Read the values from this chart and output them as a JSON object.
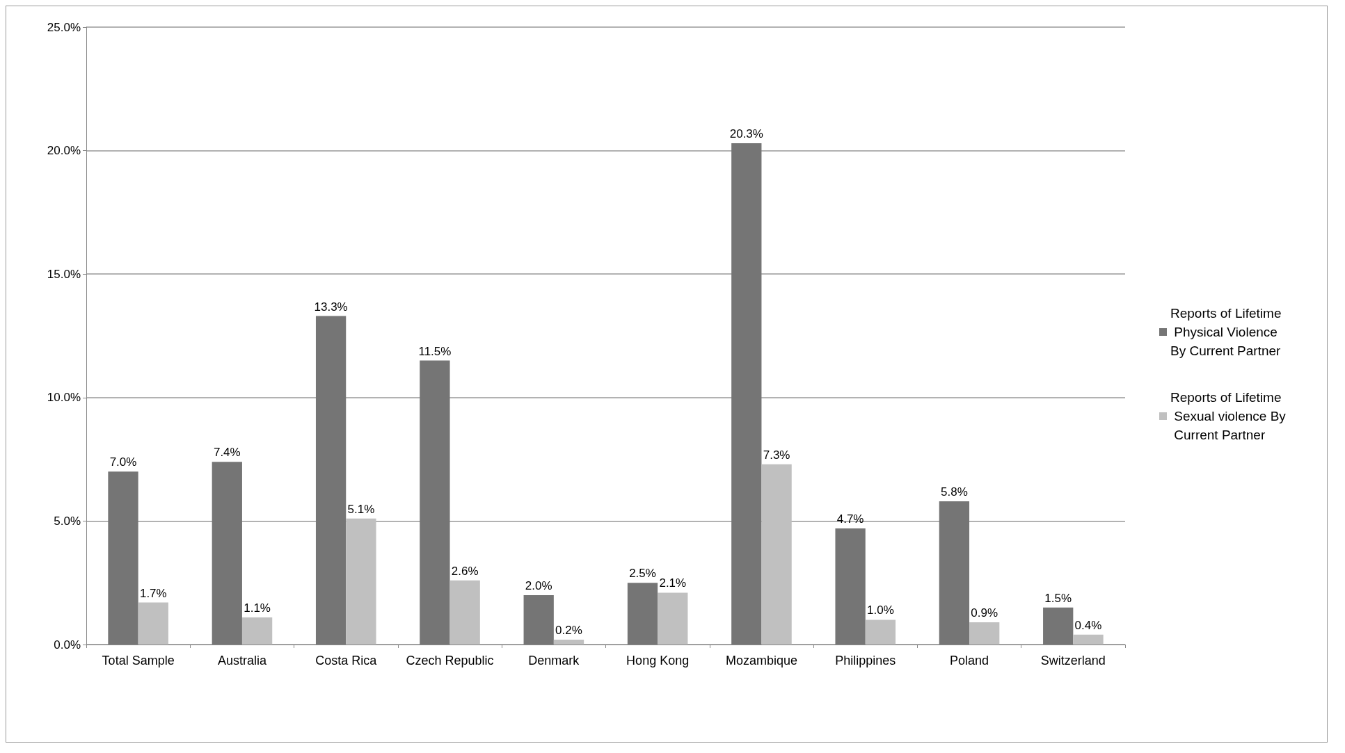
{
  "chart_data": {
    "type": "bar",
    "categories": [
      "Total Sample",
      "Australia",
      "Costa Rica",
      "Czech Republic",
      "Denmark",
      "Hong Kong",
      "Mozambique",
      "Philippines",
      "Poland",
      "Switzerland"
    ],
    "series": [
      {
        "name": "Reports of Lifetime Physical Violence By Current Partner",
        "color": "#757575",
        "values": [
          7.0,
          7.4,
          13.3,
          11.5,
          2.0,
          2.5,
          20.3,
          4.7,
          5.8,
          1.5
        ],
        "value_labels": [
          "7.0%",
          "7.4%",
          "13.3%",
          "11.5%",
          "2.0%",
          "2.5%",
          "20.3%",
          "4.7%",
          "5.8%",
          "1.5%"
        ]
      },
      {
        "name": "Reports of Lifetime Sexual violence By Current Partner",
        "color": "#c0c0c0",
        "values": [
          1.7,
          1.1,
          5.1,
          2.6,
          0.2,
          2.1,
          7.3,
          1.0,
          0.9,
          0.4
        ],
        "value_labels": [
          "1.7%",
          "1.1%",
          "5.1%",
          "2.6%",
          "0.2%",
          "2.1%",
          "7.3%",
          "1.0%",
          "0.9%",
          "0.4%"
        ]
      }
    ],
    "ylim": [
      0,
      25
    ],
    "yticks": [
      {
        "value": 0,
        "label": "0.0%"
      },
      {
        "value": 5,
        "label": "5.0%"
      },
      {
        "value": 10,
        "label": "10.0%"
      },
      {
        "value": 15,
        "label": "15.0%"
      },
      {
        "value": 20,
        "label": "20.0%"
      },
      {
        "value": 25,
        "label": "25.0%"
      }
    ],
    "grid": "y",
    "legend": "right"
  }
}
